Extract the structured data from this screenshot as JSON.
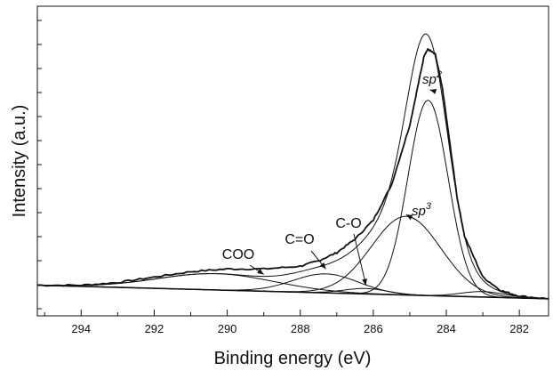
{
  "chart_data": {
    "type": "line",
    "xlabel": "Binding energy (eV)",
    "ylabel": "Intensity (a.u.)",
    "xlim": [
      295.2,
      281.2
    ],
    "ylim": [
      0,
      1.0
    ],
    "x_reversed": true,
    "x_ticks": [
      294,
      292,
      290,
      288,
      286,
      284,
      282
    ],
    "x_tick_labels": [
      "294",
      "292",
      "290",
      "288",
      "286",
      "284",
      "282"
    ],
    "y_tick_labels_shown": false,
    "grid": false,
    "legend": "none",
    "baseline": {
      "x": [
        295.2,
        281.2
      ],
      "y": [
        0.08,
        0.03
      ]
    },
    "measured_curve": {
      "x": [
        295.2,
        294.0,
        293.0,
        292.0,
        291.0,
        290.0,
        289.0,
        288.0,
        287.5,
        287.0,
        286.5,
        286.0,
        285.5,
        285.0,
        284.8,
        284.6,
        284.5,
        284.3,
        284.1,
        283.9,
        283.7,
        283.5,
        283.0,
        282.5,
        282.0,
        281.2
      ],
      "y": [
        0.08,
        0.08,
        0.09,
        0.11,
        0.13,
        0.14,
        0.14,
        0.15,
        0.17,
        0.2,
        0.25,
        0.32,
        0.45,
        0.67,
        0.8,
        0.93,
        0.95,
        0.93,
        0.8,
        0.6,
        0.4,
        0.26,
        0.11,
        0.06,
        0.04,
        0.03
      ]
    },
    "components": [
      {
        "label": "sp2",
        "center": 284.5,
        "height": 0.72,
        "width": 0.55
      },
      {
        "label": "sp3",
        "center": 285.1,
        "height": 0.29,
        "width": 0.95
      },
      {
        "label": "C-O",
        "center": 286.2,
        "height": 0.02,
        "width": 0.6
      },
      {
        "label": "C=O",
        "center": 287.3,
        "height": 0.07,
        "width": 0.9
      },
      {
        "label": "COO",
        "center": 290.3,
        "height": 0.06,
        "width": 1.6
      },
      {
        "label": "",
        "center": 283.0,
        "height": 0.02,
        "width": 0.6
      }
    ],
    "annotations": [
      {
        "text": "COO",
        "target_x": 289.0,
        "target_y": 0.12
      },
      {
        "text": "C=O",
        "target_x": 287.3,
        "target_y": 0.14
      },
      {
        "text": "C-O",
        "target_x": 286.2,
        "target_y": 0.08
      },
      {
        "text": "sp",
        "sup": "2",
        "target_x": 284.45,
        "target_y": 0.8
      },
      {
        "text": "sp",
        "sup": "3",
        "target_x": 285.1,
        "target_y": 0.34
      }
    ]
  }
}
